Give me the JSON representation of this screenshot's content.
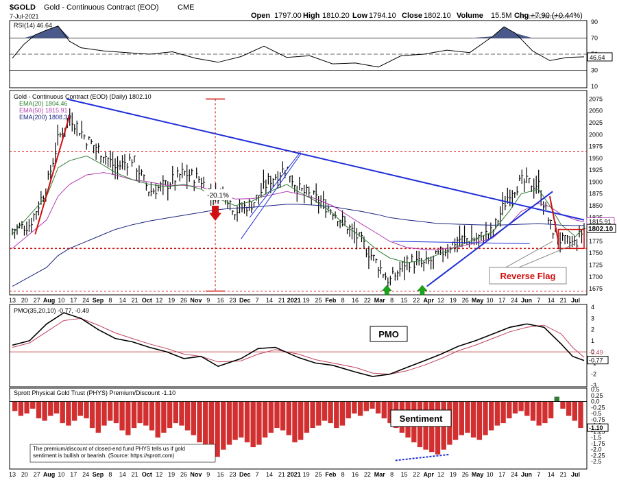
{
  "header": {
    "symbol": "$GOLD",
    "name": "Gold - Continuous Contract (EOD)",
    "exchange": "CME",
    "date": "7-Jul-2021",
    "open_label": "Open",
    "open": "1797.00",
    "high_label": "High",
    "high": "1810.20",
    "low_label": "Low",
    "low": "1794.10",
    "close_label": "Close",
    "close": "1802.10",
    "volume_label": "Volume",
    "volume": "15.5M",
    "chg_label": "Chg",
    "chg": "+7.90 (+0.44%)",
    "watermark": "©StockCharts.com"
  },
  "colors": {
    "ema20": "#2e7d32",
    "ema50": "#b03cb0",
    "ema200": "#1a237e",
    "trend": "#1f2fd6",
    "red": "#d01010",
    "green": "#1aa51a",
    "rsi_fill": "#4a5a8a",
    "price": "#000000"
  },
  "chart_data": [
    {
      "type": "line",
      "name": "rsi",
      "title": "RSI(14) 46.64",
      "ylim": [
        10,
        90
      ],
      "y_ticks": [
        10,
        30,
        50,
        70,
        90
      ],
      "reference_lines": [
        30,
        70
      ],
      "current_value_label": "46.64",
      "x": [
        0,
        0.02,
        0.04,
        0.06,
        0.08,
        0.1,
        0.12,
        0.16,
        0.2,
        0.24,
        0.28,
        0.32,
        0.36,
        0.4,
        0.44,
        0.48,
        0.52,
        0.56,
        0.6,
        0.64,
        0.68,
        0.72,
        0.76,
        0.8,
        0.84,
        0.86,
        0.88,
        0.91,
        0.94,
        0.97,
        1.0
      ],
      "values": [
        45,
        62,
        74,
        80,
        85,
        66,
        58,
        54,
        52,
        50,
        53,
        45,
        40,
        47,
        60,
        46,
        48,
        38,
        39,
        34,
        48,
        50,
        55,
        52,
        72,
        84,
        76,
        54,
        42,
        46,
        46.64
      ]
    },
    {
      "type": "bar",
      "name": "price",
      "title": "Gold - Continuous Contract (EOD) (Daily) 1802.10",
      "ylim": [
        1665,
        2090
      ],
      "y_ticks": [
        1675,
        1700,
        1725,
        1750,
        1775,
        1800,
        1825,
        1850,
        1875,
        1900,
        1925,
        1950,
        1975,
        2000,
        2025,
        2050,
        2075
      ],
      "last_price_label": "1802.10",
      "ema_labels": [
        "EMA(20) 1804.46",
        "EMA(50) 1815.91",
        "EMA(200) 1808.38"
      ],
      "ema50_marker_label": "1815.91",
      "x_tick_labels": [
        "13",
        "20",
        "27",
        "Aug",
        "10",
        "17",
        "24",
        "Sep",
        "8",
        "14",
        "21",
        "Oct",
        "12",
        "19",
        "26",
        "Nov",
        "9",
        "16",
        "23",
        "Dec",
        "7",
        "14",
        "21",
        "2021",
        "19",
        "25",
        "Feb",
        "8",
        "16",
        "22",
        "Mar",
        "8",
        "15",
        "22",
        "Apr",
        "12",
        "19",
        "26",
        "May",
        "10",
        "17",
        "24",
        "Jun",
        "7",
        "14",
        "21",
        "Jul"
      ],
      "close_path": {
        "x": [
          0.0,
          0.03,
          0.06,
          0.08,
          0.1,
          0.13,
          0.16,
          0.18,
          0.21,
          0.24,
          0.27,
          0.3,
          0.33,
          0.35,
          0.37,
          0.39,
          0.42,
          0.45,
          0.48,
          0.5,
          0.53,
          0.56,
          0.58,
          0.61,
          0.64,
          0.66,
          0.69,
          0.72,
          0.74,
          0.78,
          0.81,
          0.84,
          0.87,
          0.89,
          0.92,
          0.94,
          0.96,
          0.985,
          1.0
        ],
        "values": [
          1800,
          1810,
          1890,
          1990,
          2040,
          1990,
          1960,
          1930,
          1950,
          1880,
          1895,
          1920,
          1905,
          1870,
          1880,
          1840,
          1855,
          1905,
          1930,
          1885,
          1865,
          1840,
          1815,
          1775,
          1725,
          1690,
          1735,
          1725,
          1740,
          1780,
          1780,
          1795,
          1880,
          1900,
          1895,
          1810,
          1775,
          1770,
          1802
        ]
      },
      "ema20": [
        1790,
        1830,
        1870,
        1930,
        1945,
        1955,
        1935,
        1920,
        1905,
        1895,
        1890,
        1895,
        1885,
        1870,
        1860,
        1850,
        1860,
        1880,
        1895,
        1880,
        1860,
        1835,
        1810,
        1785,
        1755,
        1740,
        1730,
        1735,
        1745,
        1765,
        1780,
        1795,
        1840,
        1875,
        1885,
        1850,
        1810,
        1785,
        1804.46
      ],
      "ema50": [
        1760,
        1790,
        1820,
        1870,
        1895,
        1915,
        1920,
        1915,
        1905,
        1900,
        1893,
        1893,
        1890,
        1880,
        1872,
        1864,
        1865,
        1872,
        1880,
        1875,
        1865,
        1850,
        1835,
        1812,
        1790,
        1775,
        1762,
        1758,
        1757,
        1763,
        1772,
        1782,
        1812,
        1838,
        1855,
        1848,
        1832,
        1820,
        1815.91
      ],
      "ema200": [
        1680,
        1700,
        1720,
        1745,
        1760,
        1775,
        1790,
        1800,
        1810,
        1818,
        1824,
        1830,
        1836,
        1840,
        1843,
        1845,
        1847,
        1850,
        1853,
        1853,
        1851,
        1848,
        1844,
        1838,
        1831,
        1825,
        1820,
        1816,
        1813,
        1811,
        1810,
        1809,
        1810,
        1811,
        1812,
        1811,
        1809,
        1808,
        1808.38
      ],
      "horizontal_levels": [
        1965,
        1760,
        1670
      ],
      "annotations": [
        {
          "label": "-20.1%",
          "kind": "decline"
        },
        {
          "label": "Reverse Flag",
          "kind": "pattern"
        }
      ]
    },
    {
      "type": "line",
      "name": "pmo",
      "title": "PMO(35,20,10) -0.77, -0.49",
      "ylim": [
        -3,
        4
      ],
      "y_ticks": [
        -3,
        -2,
        -1,
        0,
        1,
        2,
        3,
        4
      ],
      "label_box": "PMO",
      "current_labels": [
        "-0.49",
        "-0.77"
      ],
      "x": [
        0,
        0.03,
        0.06,
        0.09,
        0.12,
        0.15,
        0.18,
        0.21,
        0.24,
        0.27,
        0.3,
        0.33,
        0.36,
        0.4,
        0.43,
        0.46,
        0.5,
        0.53,
        0.56,
        0.6,
        0.63,
        0.66,
        0.69,
        0.72,
        0.75,
        0.78,
        0.81,
        0.84,
        0.87,
        0.9,
        0.93,
        0.96,
        0.98,
        1.0
      ],
      "pmo": [
        0.6,
        1.0,
        2.5,
        3.5,
        3.0,
        2.0,
        1.2,
        0.9,
        0.4,
        0.0,
        -0.6,
        -0.4,
        -1.3,
        -0.6,
        0.3,
        0.4,
        -0.5,
        -1.0,
        -1.2,
        -1.8,
        -2.2,
        -2.0,
        -1.4,
        -0.8,
        -0.2,
        0.5,
        1.0,
        1.6,
        2.2,
        2.5,
        2.2,
        0.7,
        -0.4,
        -0.77
      ],
      "signal": [
        0.4,
        0.8,
        1.8,
        2.8,
        3.0,
        2.4,
        1.7,
        1.2,
        0.7,
        0.3,
        -0.2,
        -0.4,
        -0.9,
        -0.8,
        -0.2,
        0.2,
        -0.2,
        -0.7,
        -1.0,
        -1.4,
        -1.9,
        -2.0,
        -1.7,
        -1.2,
        -0.6,
        0.1,
        0.6,
        1.2,
        1.8,
        2.2,
        2.4,
        1.6,
        0.4,
        -0.49
      ]
    },
    {
      "type": "bar",
      "name": "sentiment",
      "title": "Sprott Physical Gold Trust (PHYS) Premium/Discount -1.10",
      "ylim": [
        -2.75,
        0.5
      ],
      "y_ticks": [
        0.5,
        0.25,
        0,
        -0.25,
        -0.5,
        -0.75,
        -1,
        -1.25,
        -1.5,
        -1.75,
        -2,
        -2.25,
        -2.5
      ],
      "y_tick_labels": [
        "0.5",
        "0.25",
        "0.0",
        "-0.25",
        "-0.5",
        "-0.75",
        "-1.0",
        "-1.25",
        "-1.5",
        "-1.75",
        "-2.0",
        "-2.25",
        "-2.5"
      ],
      "current_value_label": "-1.10",
      "label_box": "Sentiment",
      "note": "The premium/discount of closed-end fund PHYS tells us if gold sentiment is bullish or bearish. (Source: https://sprott.com)",
      "x_tick_labels": [
        "13",
        "20",
        "27",
        "Aug",
        "10",
        "17",
        "24",
        "Sep",
        "8",
        "14",
        "21",
        "Oct",
        "12",
        "19",
        "26",
        "Nov",
        "9",
        "16",
        "23",
        "Dec",
        "7",
        "14",
        "21",
        "2021",
        "19",
        "25",
        "Feb",
        "8",
        "16",
        "22",
        "Mar",
        "8",
        "15",
        "22",
        "Apr",
        "12",
        "19",
        "26",
        "May",
        "10",
        "17",
        "24",
        "Jun",
        "7",
        "14",
        "21",
        "Jul"
      ],
      "values": [
        -0.4,
        -0.6,
        -0.5,
        -0.3,
        -0.7,
        -0.8,
        -0.6,
        -0.5,
        -0.9,
        -1.0,
        -0.8,
        -0.6,
        -0.7,
        -1.1,
        -1.3,
        -1.0,
        -0.8,
        -0.9,
        -1.2,
        -1.4,
        -1.1,
        -0.9,
        -1.0,
        -1.2,
        -1.5,
        -1.3,
        -1.1,
        -0.9,
        -1.0,
        -1.2,
        -1.4,
        -1.7,
        -1.9,
        -2.2,
        -2.3,
        -2.0,
        -1.8,
        -1.6,
        -1.5,
        -1.7,
        -1.9,
        -1.8,
        -1.5,
        -1.3,
        -1.1,
        -1.2,
        -1.4,
        -1.7,
        -1.6,
        -1.3,
        -1.1,
        -1.0,
        -0.8,
        -0.9,
        -1.1,
        -1.0,
        -0.7,
        -0.5,
        -0.6,
        -0.4,
        -0.3,
        -0.5,
        -0.7,
        -0.9,
        -1.1,
        -1.3,
        -1.5,
        -1.7,
        -1.9,
        -2.0,
        -2.1,
        -2.2,
        -2.0,
        -1.8,
        -1.6,
        -1.4,
        -1.3,
        -1.5,
        -1.6,
        -1.4,
        -1.2,
        -1.0,
        -0.9,
        -0.7,
        -0.5,
        -0.4,
        -0.6,
        -0.8,
        -1.0,
        -0.9,
        -0.7,
        0.2,
        -0.3,
        -0.6,
        -0.8,
        -1.1
      ]
    }
  ]
}
